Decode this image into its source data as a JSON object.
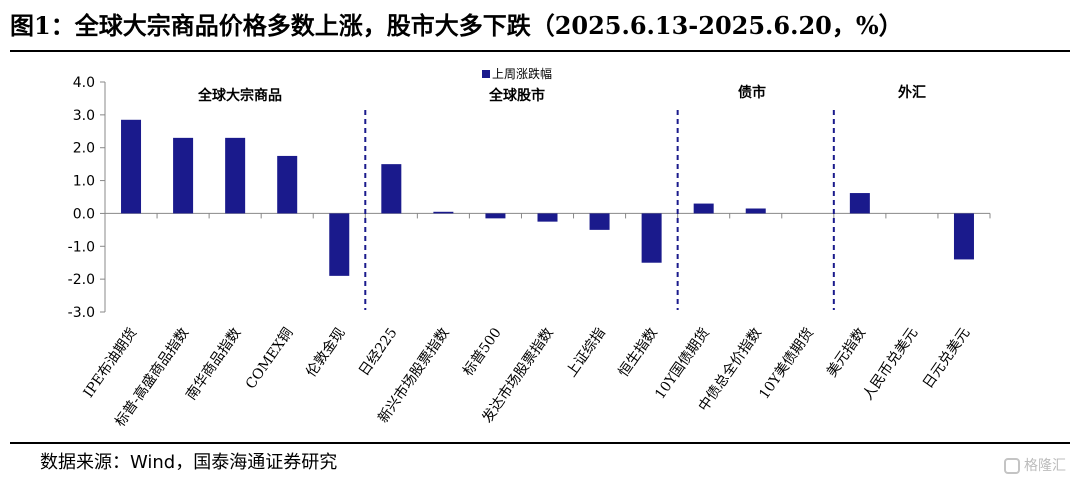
{
  "title": "图1：全球大宗商品价格多数上涨，股市大多下跌（2025.6.13-2025.6.20，%）",
  "source": "数据来源：Wind，国泰海通证券研究",
  "watermark": "格隆汇",
  "colors": {
    "bar": "#1a1a8c",
    "axis": "#888888",
    "divider": "#1a1a8c",
    "text": "#000000"
  },
  "chart_data": {
    "type": "bar",
    "categories": [
      "IPE布油期货",
      "标普-高盛商品指数",
      "南华商品指数",
      "COMEX铜",
      "伦敦金现",
      "日经225",
      "新兴市场股票指数",
      "标普500",
      "发达市场股票指数",
      "上证综指",
      "恒生指数",
      "10Y国债期货",
      "中债总全价指数",
      "10Y美债期货",
      "美元指数",
      "人民币兑美元",
      "日元兑美元"
    ],
    "series": [
      {
        "name": "上周涨跌幅",
        "values": [
          2.85,
          2.3,
          2.3,
          1.75,
          -1.9,
          1.5,
          0.05,
          -0.15,
          -0.25,
          -0.5,
          -1.5,
          0.3,
          0.15,
          0.0,
          0.62,
          0.0,
          -1.4
        ]
      }
    ],
    "ylim": [
      -3.0,
      4.0
    ],
    "yticks": [
      "4.0",
      "3.0",
      "2.0",
      "1.0",
      "0.0",
      "-1.0",
      "-2.0",
      "-3.0"
    ],
    "group_labels": [
      "全球大宗商品",
      "全球股市",
      "债市",
      "外汇"
    ],
    "legend_position": "top-center",
    "grid": false
  }
}
